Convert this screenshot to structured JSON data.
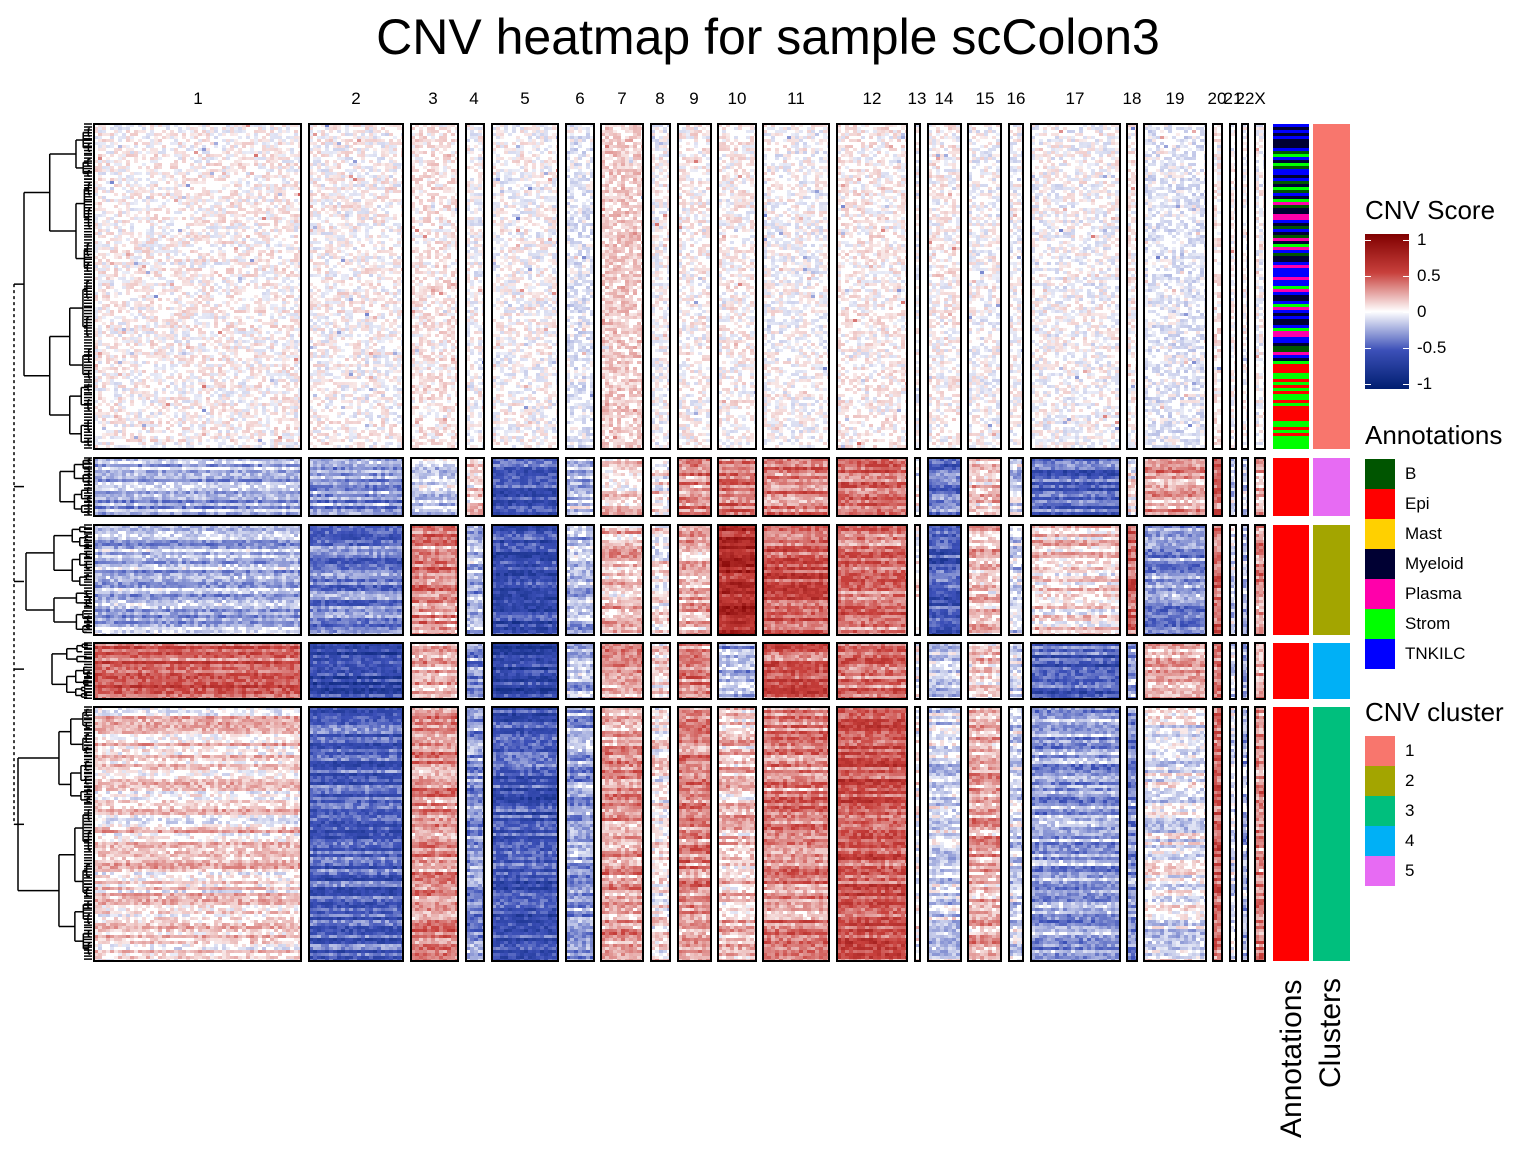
{
  "chart_data": {
    "type": "heatmap",
    "title": "CNV heatmap for sample scColon3",
    "chromosomes": [
      "1",
      "2",
      "3",
      "4",
      "5",
      "6",
      "7",
      "8",
      "9",
      "10",
      "11",
      "12",
      "13",
      "14",
      "15",
      "16",
      "17",
      "18",
      "19",
      "20",
      "21",
      "22",
      "X"
    ],
    "clusters_order": [
      "1",
      "5",
      "2",
      "4",
      "3"
    ],
    "cluster_annotation": [
      "Mixed",
      "Epi",
      "Epi",
      "Epi",
      "Epi"
    ],
    "cnv_pattern": {
      "1": {
        "1": 0.02,
        "2": 0.01,
        "3": 0.05,
        "4": 0.0,
        "5": 0.0,
        "6": -0.05,
        "7": 0.12,
        "8": 0.0,
        "9": 0.02,
        "10": 0.02,
        "11": 0.0,
        "12": 0.03,
        "13": 0.0,
        "14": 0.02,
        "15": 0.0,
        "16": 0.0,
        "17": 0.0,
        "18": 0.03,
        "19": -0.05,
        "20": 0.05,
        "21": 0.0,
        "22": 0.0,
        "X": 0.0
      },
      "5": {
        "1": -0.2,
        "2": -0.3,
        "3": -0.1,
        "4": 0.1,
        "5": -0.45,
        "6": -0.15,
        "7": 0.15,
        "8": 0.05,
        "9": 0.3,
        "10": 0.35,
        "11": 0.35,
        "12": 0.35,
        "13": 0.0,
        "14": -0.4,
        "15": 0.15,
        "16": -0.1,
        "17": -0.45,
        "18": 0.0,
        "19": 0.25,
        "20": 0.35,
        "21": -0.1,
        "22": -0.15,
        "X": 0.2
      },
      "2": {
        "1": -0.2,
        "2": -0.35,
        "3": 0.3,
        "4": -0.2,
        "5": -0.55,
        "6": -0.2,
        "7": 0.15,
        "8": 0.05,
        "9": 0.2,
        "10": 0.65,
        "11": 0.45,
        "12": 0.35,
        "13": 0.0,
        "14": -0.5,
        "15": 0.15,
        "16": -0.1,
        "17": 0.1,
        "18": 0.4,
        "19": -0.3,
        "20": 0.4,
        "21": -0.1,
        "22": -0.2,
        "X": 0.3
      },
      "4": {
        "1": 0.4,
        "2": -0.6,
        "3": 0.2,
        "4": -0.3,
        "5": -0.6,
        "6": -0.2,
        "7": 0.2,
        "8": 0.05,
        "9": 0.3,
        "10": -0.25,
        "11": 0.4,
        "12": 0.35,
        "13": 0.0,
        "14": -0.1,
        "15": 0.1,
        "16": -0.1,
        "17": -0.45,
        "18": -0.3,
        "19": 0.2,
        "20": 0.35,
        "21": -0.1,
        "22": -0.2,
        "X": 0.25
      },
      "3": {
        "1": 0.1,
        "2": -0.45,
        "3": 0.3,
        "4": -0.3,
        "5": -0.5,
        "6": -0.25,
        "7": 0.25,
        "8": 0.05,
        "9": 0.3,
        "10": 0.15,
        "11": 0.3,
        "12": 0.45,
        "13": 0.0,
        "14": -0.1,
        "15": 0.2,
        "16": -0.1,
        "17": -0.25,
        "18": -0.3,
        "19": -0.05,
        "20": 0.4,
        "21": -0.1,
        "22": -0.2,
        "X": 0.3
      }
    },
    "color_scale": {
      "min": -1,
      "max": 1,
      "ticks": [
        1,
        0.5,
        0,
        -0.5,
        -1
      ]
    },
    "legends": {
      "cnv_score": {
        "title": "CNV Score",
        "tick_labels": [
          "1",
          "0.5",
          "0",
          "-0.5",
          "-1"
        ]
      },
      "annotations": {
        "title": "Annotations",
        "items": [
          {
            "label": "B",
            "color": "#005500"
          },
          {
            "label": "Epi",
            "color": "#ff0000"
          },
          {
            "label": "Mast",
            "color": "#ffd000"
          },
          {
            "label": "Myeloid",
            "color": "#000033"
          },
          {
            "label": "Plasma",
            "color": "#ff00aa"
          },
          {
            "label": "Strom",
            "color": "#00ff00"
          },
          {
            "label": "TNKILC",
            "color": "#0000ff"
          }
        ]
      },
      "cnv_cluster": {
        "title": "CNV cluster",
        "items": [
          {
            "label": "1",
            "color": "#f8766d"
          },
          {
            "label": "2",
            "color": "#a3a500"
          },
          {
            "label": "3",
            "color": "#00bf7d"
          },
          {
            "label": "4",
            "color": "#00b0f6"
          },
          {
            "label": "5",
            "color": "#e76bf3"
          }
        ]
      }
    },
    "side_labels": {
      "annotations": "Annotations",
      "clusters": "Clusters"
    },
    "grid": false
  }
}
